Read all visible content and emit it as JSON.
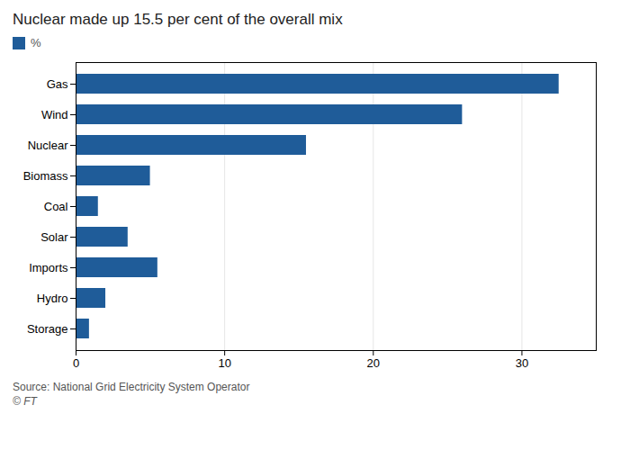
{
  "chart_data": {
    "type": "bar",
    "orientation": "horizontal",
    "title": "Nuclear made up 15.5 per cent of the overall mix",
    "categories": [
      "Storage",
      "Hydro",
      "Imports",
      "Solar",
      "Coal",
      "Biomass",
      "Nuclear",
      "Wind",
      "Gas"
    ],
    "series": [
      {
        "name": "%",
        "color": "#1f5c99",
        "values": [
          0.9,
          2.0,
          5.5,
          3.5,
          1.5,
          5.0,
          15.5,
          26.0,
          32.5
        ]
      }
    ],
    "xlim": [
      0,
      35
    ],
    "xticks": [
      0,
      10,
      20,
      30
    ],
    "grid": true,
    "legend": "top-left",
    "annotations": [
      "Source: National Grid Electricity System Operator",
      "© FT"
    ]
  }
}
